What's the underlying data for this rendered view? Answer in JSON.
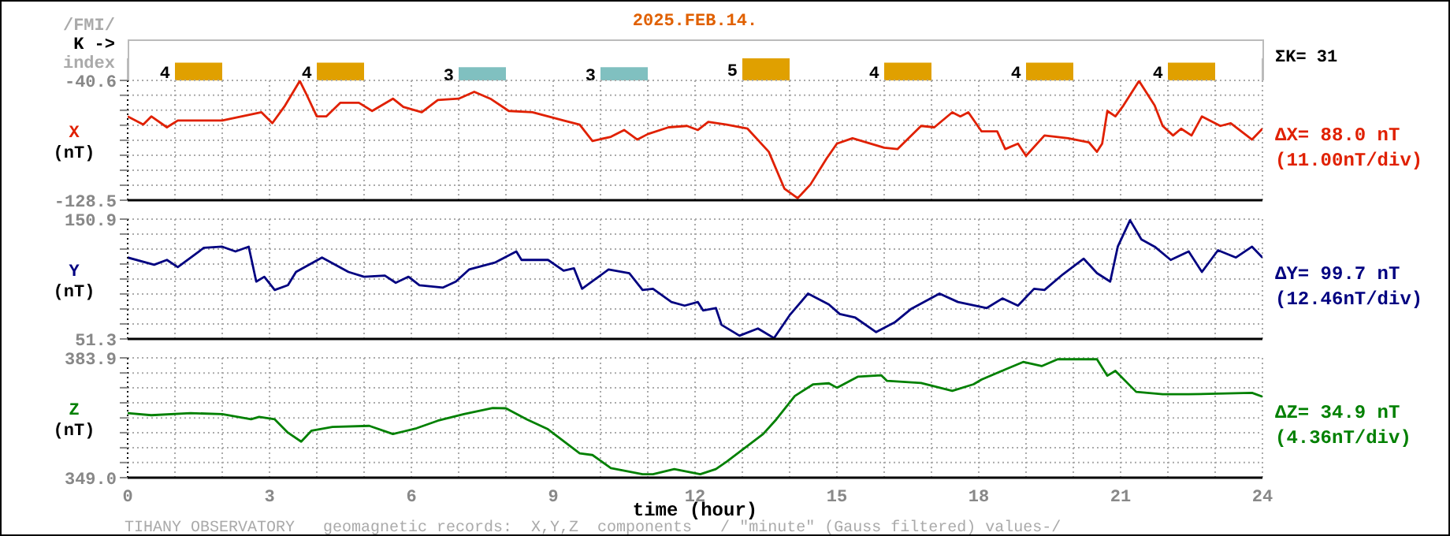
{
  "chart_data": [
    {
      "type": "bar",
      "title": "2025.FEB.14.",
      "categories": [
        null,
        null,
        null,
        null,
        null,
        null,
        null,
        null
      ],
      "values": [
        4,
        4,
        3,
        3,
        5,
        4,
        4,
        4
      ],
      "colors": [
        "#e0a000",
        "#e0a000",
        "#80c0c0",
        "#80c0c0",
        "#e0a000",
        "#e0a000",
        "#e0a000",
        "#e0a000"
      ],
      "data_labels": true,
      "grid": "x",
      "annotations": [
        "/FMI/",
        "K ->",
        "index",
        "ΣK= 31"
      ]
    },
    {
      "type": "line",
      "ylabel": "X (nT)",
      "xlim": [
        0,
        24
      ],
      "tick_labels": "y",
      "grid": true,
      "xticks": [
        {
          "value": 0,
          "label": null
        },
        {
          "value": 1,
          "label": null
        },
        {
          "value": 2,
          "label": null
        },
        {
          "value": 3,
          "label": null
        },
        {
          "value": 4,
          "label": null
        },
        {
          "value": 5,
          "label": null
        },
        {
          "value": 6,
          "label": null
        },
        {
          "value": 7,
          "label": null
        },
        {
          "value": 8,
          "label": null
        },
        {
          "value": 9,
          "label": null
        },
        {
          "value": 10,
          "label": null
        },
        {
          "value": 11,
          "label": null
        },
        {
          "value": 12,
          "label": null
        },
        {
          "value": 13,
          "label": null
        },
        {
          "value": 14,
          "label": null
        },
        {
          "value": 15,
          "label": null
        },
        {
          "value": 16,
          "label": null
        },
        {
          "value": 17,
          "label": null
        },
        {
          "value": 18,
          "label": null
        },
        {
          "value": 19,
          "label": null
        },
        {
          "value": 20,
          "label": null
        },
        {
          "value": 21,
          "label": null
        },
        {
          "value": 22,
          "label": null
        },
        {
          "value": 23,
          "label": null
        },
        {
          "value": 24,
          "label": null
        }
      ],
      "ylim": [
        -128.5,
        -40.6
      ],
      "yticks": [
        -128.5,
        {
          "value": -117.5,
          "label": null
        },
        {
          "value": -106.5,
          "label": null
        },
        {
          "value": -95.5,
          "label": null
        },
        {
          "value": -84.5,
          "label": null
        },
        {
          "value": -73.5,
          "label": null
        },
        {
          "value": -62.5,
          "label": null
        },
        {
          "value": -51.5,
          "label": null
        },
        -40.6
      ],
      "annotations": [
        "ΔX= 88.0 nT",
        "(11.00nT/div)"
      ],
      "series": [
        {
          "color": "#e02000",
          "x": [
            0,
            0.33,
            0.5,
            0.83,
            1.06,
            2,
            2.83,
            3.06,
            3.33,
            3.64,
            3.77,
            4,
            4.2,
            4.5,
            4.89,
            5.17,
            5.61,
            5.83,
            6.22,
            6.56,
            7,
            7.33,
            7.67,
            8.06,
            8.56,
            9.22,
            9.56,
            9.83,
            10.22,
            10.5,
            10.78,
            11,
            11.44,
            11.83,
            12.06,
            12.28,
            12.67,
            13.11,
            13.56,
            13.89,
            14.17,
            14.44,
            14.78,
            15,
            15.33,
            16,
            16.28,
            16.78,
            17.06,
            17.44,
            17.61,
            17.78,
            18.06,
            18.39,
            18.56,
            18.83,
            19,
            19.39,
            19.89,
            20.33,
            20.5,
            20.61,
            20.72,
            20.89,
            21.06,
            21.39,
            21.72,
            21.89,
            22.11,
            22.28,
            22.5,
            22.72,
            23.11,
            23.33,
            23.78,
            24
          ],
          "values": [
            -67,
            -73,
            -67,
            -75,
            -70,
            -70,
            -64,
            -72,
            -59,
            -41,
            -50,
            -67,
            -67,
            -57,
            -57,
            -63,
            -54,
            -60,
            -64,
            -55,
            -54,
            -49,
            -54,
            -63,
            -64,
            -70,
            -73,
            -85,
            -82,
            -77,
            -84,
            -80,
            -75,
            -74,
            -77,
            -71,
            -73,
            -76,
            -93,
            -120,
            -127,
            -117,
            -98,
            -87,
            -83,
            -90,
            -91,
            -74,
            -75,
            -64,
            -67,
            -64,
            -78,
            -78,
            -91,
            -87,
            -96,
            -81,
            -83,
            -86,
            -93,
            -87,
            -63,
            -67,
            -59,
            -41,
            -59,
            -74,
            -81,
            -76,
            -81,
            -67,
            -74,
            -72,
            -84,
            -76
          ]
        }
      ]
    },
    {
      "type": "line",
      "ylabel": "Y (nT)",
      "xlim": [
        0,
        24
      ],
      "tick_labels": "y",
      "grid": true,
      "xticks": [
        {
          "value": 0,
          "label": null
        },
        {
          "value": 1,
          "label": null
        },
        {
          "value": 2,
          "label": null
        },
        {
          "value": 3,
          "label": null
        },
        {
          "value": 4,
          "label": null
        },
        {
          "value": 5,
          "label": null
        },
        {
          "value": 6,
          "label": null
        },
        {
          "value": 7,
          "label": null
        },
        {
          "value": 8,
          "label": null
        },
        {
          "value": 9,
          "label": null
        },
        {
          "value": 10,
          "label": null
        },
        {
          "value": 11,
          "label": null
        },
        {
          "value": 12,
          "label": null
        },
        {
          "value": 13,
          "label": null
        },
        {
          "value": 14,
          "label": null
        },
        {
          "value": 15,
          "label": null
        },
        {
          "value": 16,
          "label": null
        },
        {
          "value": 17,
          "label": null
        },
        {
          "value": 18,
          "label": null
        },
        {
          "value": 19,
          "label": null
        },
        {
          "value": 20,
          "label": null
        },
        {
          "value": 21,
          "label": null
        },
        {
          "value": 22,
          "label": null
        },
        {
          "value": 23,
          "label": null
        },
        {
          "value": 24,
          "label": null
        }
      ],
      "ylim": [
        51.3,
        150.9
      ],
      "yticks": [
        51.3,
        {
          "value": 63.8,
          "label": null
        },
        {
          "value": 76.2,
          "label": null
        },
        {
          "value": 88.7,
          "label": null
        },
        {
          "value": 101.1,
          "label": null
        },
        {
          "value": 113.6,
          "label": null
        },
        {
          "value": 126,
          "label": null
        },
        {
          "value": 138.5,
          "label": null
        },
        150.9
      ],
      "annotations": [
        "ΔY= 99.7 nT",
        "(12.46nT/div)"
      ],
      "series": [
        {
          "color": "#000080",
          "x": [
            0,
            0.56,
            0.83,
            1.06,
            1.61,
            2,
            2.28,
            2.56,
            2.72,
            2.89,
            3.11,
            3.39,
            3.56,
            4.11,
            4.67,
            5,
            5.44,
            5.67,
            5.94,
            6.17,
            6.67,
            6.94,
            7.22,
            7.78,
            8.22,
            8.33,
            8.89,
            9.22,
            9.44,
            9.61,
            9.89,
            10.17,
            10.61,
            10.89,
            11.11,
            11.5,
            11.78,
            12.06,
            12.17,
            12.44,
            12.56,
            12.94,
            13.33,
            13.67,
            14,
            14.39,
            14.83,
            15.06,
            15.39,
            15.83,
            16.22,
            16.56,
            17.17,
            17.56,
            18.17,
            18.5,
            18.83,
            19.17,
            19.39,
            19.78,
            20.22,
            20.5,
            20.78,
            20.94,
            21.2,
            21.44,
            21.72,
            22.06,
            22.44,
            22.72,
            23.06,
            23.44,
            23.78,
            24
          ],
          "values": [
            119,
            113,
            117,
            111,
            127,
            128,
            124,
            128,
            99,
            103,
            92,
            96,
            107,
            119,
            107,
            103,
            104,
            98,
            103,
            96,
            94,
            99,
            109,
            115,
            124,
            117,
            117,
            108,
            110,
            93,
            101,
            109,
            106,
            92,
            93,
            82,
            79,
            82,
            75,
            77,
            63,
            54,
            60,
            52,
            71,
            89,
            80,
            72,
            69,
            57,
            65,
            76,
            89,
            82,
            77,
            85,
            79,
            93,
            92,
            105,
            118,
            106,
            99,
            128,
            150,
            134,
            128,
            117,
            124,
            107,
            125,
            119,
            128,
            119
          ]
        }
      ]
    },
    {
      "type": "line",
      "ylabel": "Z (nT)",
      "xlabel": "time (hour)",
      "xlim": [
        0,
        24
      ],
      "grid": true,
      "xticks": [
        0,
        {
          "value": 1,
          "label": null
        },
        {
          "value": 2,
          "label": null
        },
        3,
        {
          "value": 4,
          "label": null
        },
        {
          "value": 5,
          "label": null
        },
        6,
        {
          "value": 7,
          "label": null
        },
        {
          "value": 8,
          "label": null
        },
        9,
        {
          "value": 10,
          "label": null
        },
        {
          "value": 11,
          "label": null
        },
        12,
        {
          "value": 13,
          "label": null
        },
        {
          "value": 14,
          "label": null
        },
        15,
        {
          "value": 16,
          "label": null
        },
        {
          "value": 17,
          "label": null
        },
        18,
        {
          "value": 19,
          "label": null
        },
        {
          "value": 20,
          "label": null
        },
        21,
        {
          "value": 22,
          "label": null
        },
        {
          "value": 23,
          "label": null
        },
        24
      ],
      "ylim": [
        349,
        383.9
      ],
      "yticks": [
        {
          "value": 349,
          "label": "349.0"
        },
        {
          "value": 353.4,
          "label": null
        },
        {
          "value": 357.7,
          "label": null
        },
        {
          "value": 362.1,
          "label": null
        },
        {
          "value": 366.4,
          "label": null
        },
        {
          "value": 370.8,
          "label": null
        },
        {
          "value": 375.2,
          "label": null
        },
        {
          "value": 379.5,
          "label": null
        },
        383.9
      ],
      "annotations": [
        "ΔZ= 34.9 nT",
        "(4.36nT/div)",
        "TIHANY OBSERVATORY   geomagnetic records:  X,Y,Z  components   / \"minute\" (Gauss filtered) values-/"
      ],
      "series": [
        {
          "color": "#008000",
          "x": [
            0,
            0.5,
            1.33,
            2,
            2.61,
            2.78,
            3.11,
            3.39,
            3.67,
            3.89,
            4.33,
            5.11,
            5.61,
            6.11,
            6.56,
            7.11,
            7.72,
            8,
            8.44,
            8.89,
            9.56,
            9.83,
            10.22,
            10.89,
            11.11,
            11.56,
            12.11,
            12.44,
            12.67,
            13.44,
            13.72,
            14.11,
            14.5,
            14.83,
            15,
            15.44,
            15.94,
            16.06,
            16.78,
            17.44,
            17.89,
            18.06,
            18.56,
            18.94,
            19.33,
            19.67,
            20.5,
            20.72,
            20.89,
            21.33,
            21.89,
            22.44,
            23.78,
            24
          ],
          "values": [
            367.8,
            367.2,
            367.8,
            367.5,
            366,
            366.7,
            366,
            362.1,
            359.5,
            362.7,
            363.8,
            364.1,
            361.7,
            363.4,
            365.6,
            367.5,
            369.3,
            369.2,
            366,
            363.1,
            356.1,
            355.6,
            351.8,
            350,
            350,
            351.5,
            350,
            351.5,
            353.7,
            361.7,
            366,
            372.8,
            376.2,
            376.5,
            375.2,
            378.4,
            378.8,
            377.2,
            376.6,
            374.3,
            376.2,
            377.6,
            380.5,
            382.7,
            381.5,
            383.5,
            383.5,
            378.7,
            380.1,
            374,
            373.3,
            373.3,
            373.7,
            372.6
          ]
        }
      ]
    }
  ]
}
